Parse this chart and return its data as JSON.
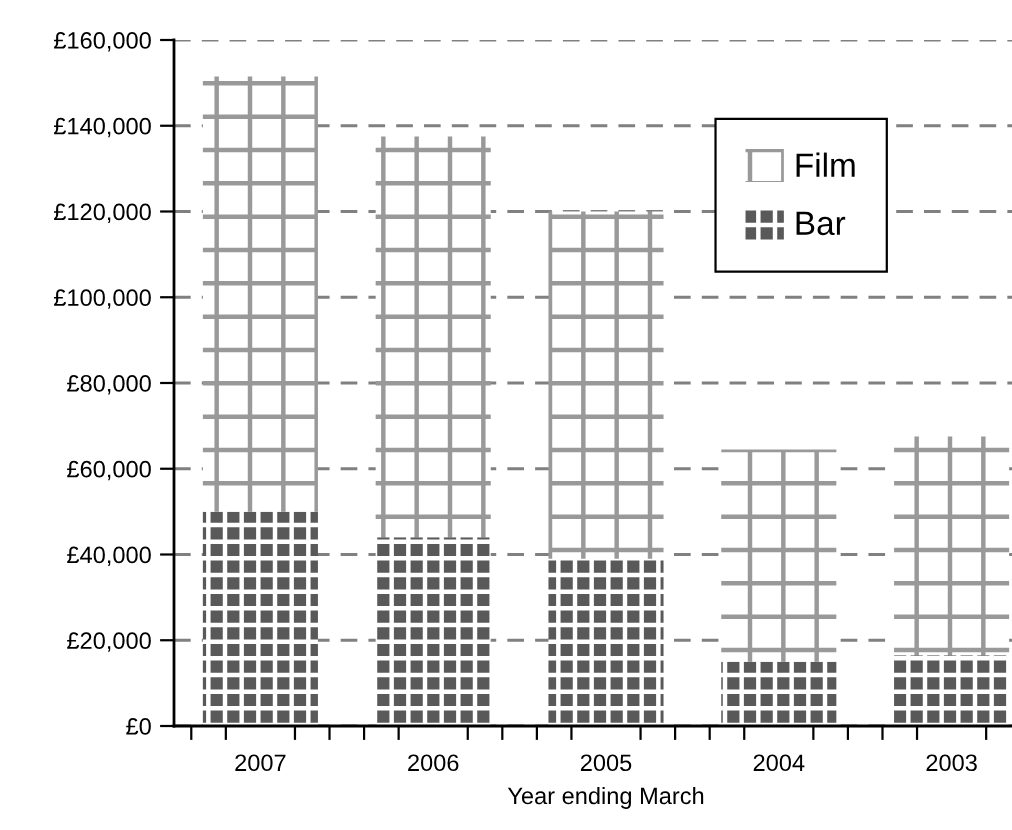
{
  "chart_data": {
    "type": "bar",
    "stacked": true,
    "xlabel": "Year ending March",
    "categories": [
      "2007",
      "2006",
      "2005",
      "2004",
      "2003"
    ],
    "series": [
      {
        "name": "Bar",
        "color": "#595959",
        "values": [
          50000,
          44000,
          39000,
          15000,
          16500
        ]
      },
      {
        "name": "Film",
        "color": "#ffffff",
        "values": [
          101500,
          93500,
          81000,
          49500,
          51000
        ]
      }
    ],
    "ylim": [
      0,
      160000
    ],
    "yticks": [
      {
        "value": 0,
        "label": "£0"
      },
      {
        "value": 20000,
        "label": "£20,000"
      },
      {
        "value": 40000,
        "label": "£40,000"
      },
      {
        "value": 60000,
        "label": "£60,000"
      },
      {
        "value": 80000,
        "label": "£80,000"
      },
      {
        "value": 100000,
        "label": "£100,000"
      },
      {
        "value": 120000,
        "label": "£120,000"
      },
      {
        "value": 140000,
        "label": "£140,000"
      },
      {
        "value": 160000,
        "label": "£160,000"
      }
    ],
    "grid": "y",
    "legend": "top right"
  }
}
